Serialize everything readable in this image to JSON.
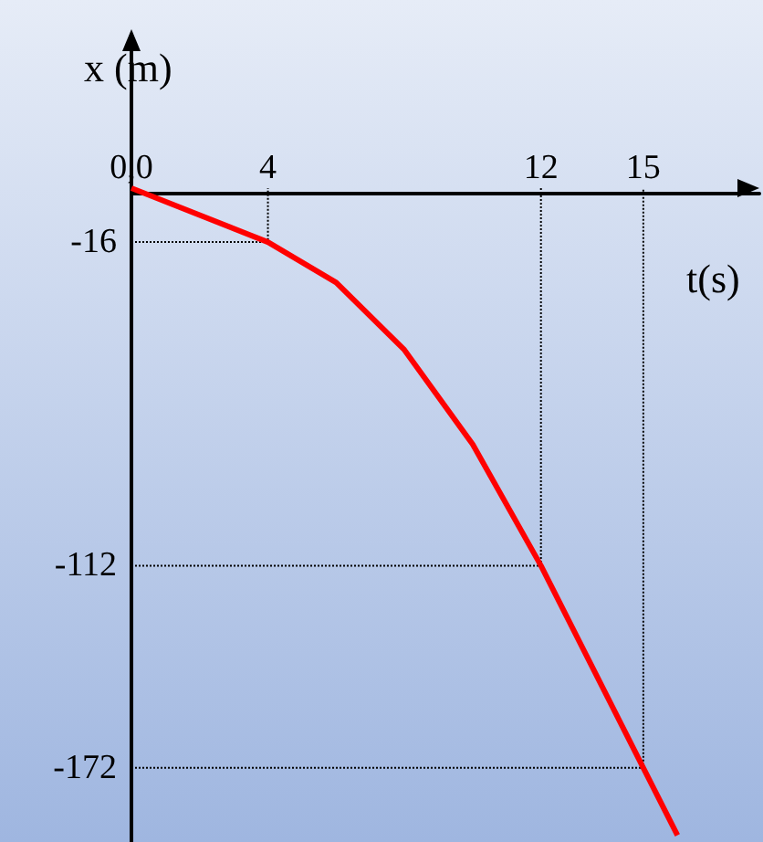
{
  "chart_data": {
    "type": "line",
    "xlabel": "t(s)",
    "ylabel": "x (m)",
    "x": [
      0,
      4,
      6,
      8,
      10,
      12,
      15,
      16
    ],
    "series": [
      {
        "color": "#ff0000",
        "values": [
          0,
          -16,
          -28,
          -48,
          -76,
          -112,
          -172,
          -192
        ]
      },
      {
        "color": "#000000",
        "line_style": "dotted",
        "x": [
          0,
          4,
          4
        ],
        "values": [
          -16,
          -16,
          0
        ]
      },
      {
        "color": "#000000",
        "line_style": "dotted",
        "x": [
          0,
          12,
          12
        ],
        "values": [
          -112,
          -112,
          0
        ]
      },
      {
        "color": "#000000",
        "line_style": "dotted",
        "x": [
          0,
          15,
          15
        ],
        "values": [
          -172,
          -172,
          0
        ]
      }
    ],
    "xlim": [
      0,
      18.4
    ],
    "xticks": [
      {
        "value": 0,
        "label": "0,0"
      },
      4,
      12,
      15
    ],
    "ylim": [
      -194,
      45
    ],
    "yticks": [
      -16,
      -112,
      -172
    ],
    "marker": "none",
    "line_style": "solid"
  }
}
